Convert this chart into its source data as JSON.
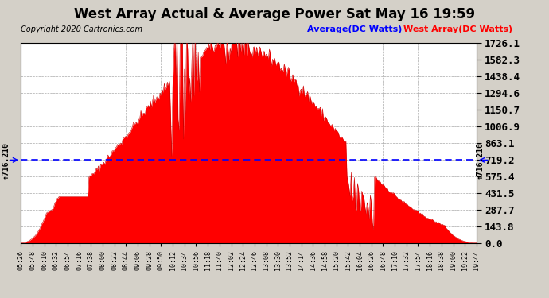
{
  "title": "West Array Actual & Average Power Sat May 16 19:59",
  "copyright": "Copyright 2020 Cartronics.com",
  "legend_avg": "Average(DC Watts)",
  "legend_west": "West Array(DC Watts)",
  "avg_value": 716.21,
  "ymax": 1726.1,
  "yticks": [
    0.0,
    143.8,
    287.7,
    431.5,
    575.4,
    719.2,
    863.1,
    1006.9,
    1150.7,
    1294.6,
    1438.4,
    1582.3,
    1726.1
  ],
  "ytick_labels": [
    "0.0",
    "143.8",
    "287.7",
    "431.5",
    "575.4",
    "719.2",
    "863.1",
    "1006.9",
    "1150.7",
    "1294.6",
    "1438.4",
    "1582.3",
    "1726.1"
  ],
  "bg_color": "#d4d0c8",
  "plot_bg": "#ffffff",
  "fill_color": "#ff0000",
  "line_color": "#cc0000",
  "avg_line_color": "#0000ff",
  "grid_color": "#aaaaaa",
  "x_labels": [
    "05:26",
    "05:48",
    "06:10",
    "06:32",
    "06:54",
    "07:16",
    "07:38",
    "08:00",
    "08:22",
    "08:44",
    "09:06",
    "09:28",
    "09:50",
    "10:12",
    "10:34",
    "10:56",
    "11:18",
    "11:40",
    "12:02",
    "12:24",
    "12:46",
    "13:08",
    "13:30",
    "13:52",
    "14:14",
    "14:36",
    "14:58",
    "15:20",
    "15:42",
    "16:04",
    "16:26",
    "16:48",
    "17:10",
    "17:32",
    "17:54",
    "18:16",
    "18:38",
    "19:00",
    "19:22",
    "19:44"
  ],
  "avg_label": "716.210",
  "title_fontsize": 12,
  "copyright_fontsize": 7,
  "legend_fontsize": 8,
  "ytick_fontsize": 9,
  "xtick_fontsize": 6
}
